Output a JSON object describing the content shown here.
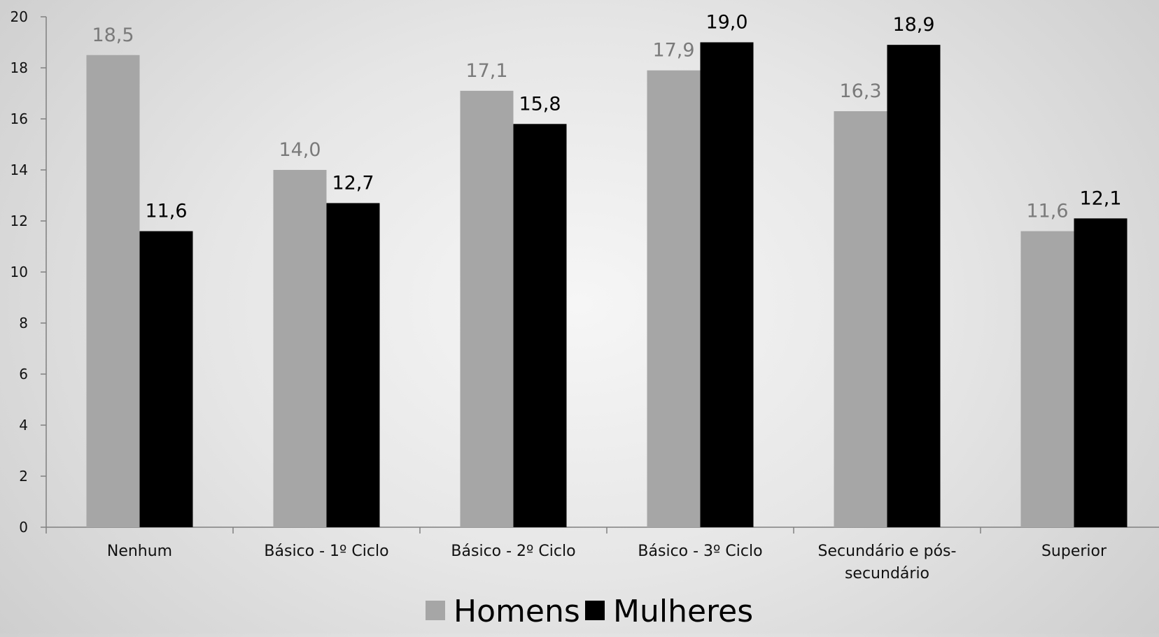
{
  "chart_data": {
    "type": "bar",
    "title": "",
    "xlabel": "",
    "ylabel": "",
    "ylim": [
      0,
      20
    ],
    "yticks": [
      0,
      2,
      4,
      6,
      8,
      10,
      12,
      14,
      16,
      18,
      20
    ],
    "grid": false,
    "legend_position": "bottom",
    "categories": [
      [
        "Nenhum"
      ],
      [
        "Básico - 1º Ciclo"
      ],
      [
        "Básico - 2º Ciclo"
      ],
      [
        "Básico - 3º Ciclo"
      ],
      [
        "Secundário e pós-",
        "secundário"
      ],
      [
        "Superior"
      ]
    ],
    "series": [
      {
        "name": "Homens",
        "color": "#a6a6a6",
        "label_color": "#7a7a7a",
        "values": [
          18.5,
          14.0,
          17.1,
          17.9,
          16.3,
          11.6
        ],
        "labels": [
          "18,5",
          "14,0",
          "17,1",
          "17,9",
          "16,3",
          "11,6"
        ]
      },
      {
        "name": "Mulheres",
        "color": "#000000",
        "label_color": "#000000",
        "values": [
          11.6,
          12.7,
          15.8,
          19.0,
          18.9,
          12.1
        ],
        "labels": [
          "11,6",
          "12,7",
          "15,8",
          "19,0",
          "18,9",
          "12,1"
        ]
      }
    ]
  }
}
